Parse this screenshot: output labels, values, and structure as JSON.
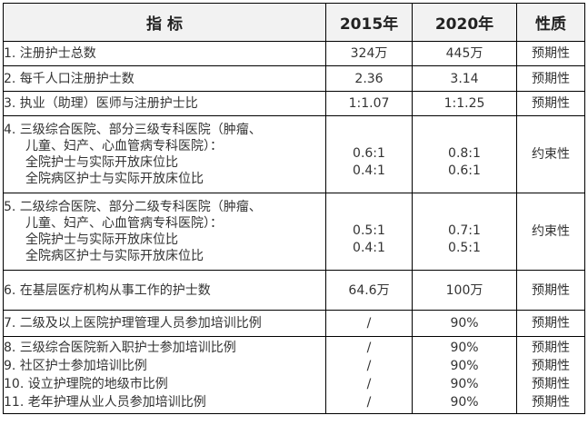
{
  "header": {
    "indicator": "指  标",
    "y2015": "2015年",
    "y2020": "2020年",
    "nature": "性质"
  },
  "rows": [
    {
      "label": "1. 注册护士总数",
      "v2015": "324万",
      "v2020": "445万",
      "nature": "预期性"
    },
    {
      "label": "2. 每千人口注册护士数",
      "v2015": "2.36",
      "v2020": "3.14",
      "nature": "预期性"
    },
    {
      "label": "3. 执业（助理）医师与注册护士比",
      "v2015": "1:1.07",
      "v2020": "1:1.25",
      "nature": "预期性"
    },
    {
      "lines": [
        "4. 三级综合医院、部分三级专科医院（肿瘤、",
        "儿童、妇产、心血管病专科医院）：",
        "全院护士与实际开放床位比",
        "全院病区护士与实际开放床位比"
      ],
      "v2015": [
        "0.6:1",
        "0.4:1"
      ],
      "v2020": [
        "0.8:1",
        "0.6:1"
      ],
      "nature": "约束性"
    },
    {
      "lines": [
        "5. 二级综合医院、部分二级专科医院（肿瘤、",
        "儿童、妇产、心血管病专科医院）：",
        "全院护士与实际开放床位比",
        "全院病区护士与实际开放床位比"
      ],
      "v2015": [
        "0.5:1",
        "0.4:1"
      ],
      "v2020": [
        "0.7:1",
        "0.5:1"
      ],
      "nature": "约束性"
    },
    {
      "label": "6. 在基层医疗机构从事工作的护士数",
      "v2015": "64.6万",
      "v2020": "100万",
      "nature": "预期性"
    },
    {
      "label": "7. 二级及以上医院护理管理人员参加培训比例",
      "v2015": "/",
      "v2020": "90%",
      "nature": "预期性"
    }
  ],
  "training_group": [
    {
      "label": "8. 三级综合医院新入职护士参加培训比例",
      "v2015": "/",
      "v2020": "90%",
      "nature": "预期性"
    },
    {
      "label": "9. 社区护士参加培训比例",
      "v2015": "/",
      "v2020": "90%",
      "nature": "预期性"
    },
    {
      "label": "10. 设立护理院的地级市比例",
      "v2015": "/",
      "v2020": "90%",
      "nature": "预期性"
    },
    {
      "label": "11. 老年护理从业人员参加培训比例",
      "v2015": "/",
      "v2020": "90%",
      "nature": "预期性"
    }
  ]
}
